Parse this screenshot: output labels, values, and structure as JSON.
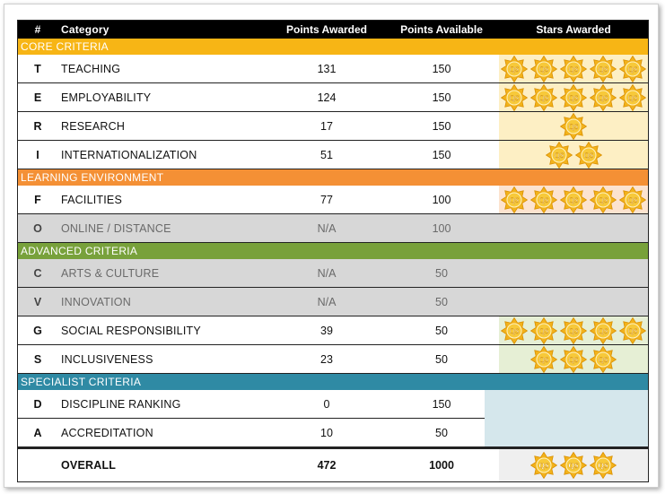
{
  "header": {
    "num": "#",
    "category": "Category",
    "points_awarded": "Points Awarded",
    "points_available": "Points Available",
    "stars_awarded": "Stars Awarded"
  },
  "star_badge_text": "QS",
  "colors": {
    "core": "#f7b515",
    "learning": "#f49035",
    "advanced": "#78a13b",
    "specialist": "#2f8aa4",
    "star": "#f2b21b"
  },
  "sections": [
    {
      "title": "CORE CRITERIA",
      "rows": [
        {
          "letter": "T",
          "category": "TEACHING",
          "awarded": "131",
          "available": "150",
          "stars": 5,
          "na": false
        },
        {
          "letter": "E",
          "category": "EMPLOYABILITY",
          "awarded": "124",
          "available": "150",
          "stars": 5,
          "na": false
        },
        {
          "letter": "R",
          "category": "RESEARCH",
          "awarded": "17",
          "available": "150",
          "stars": 1,
          "na": false
        },
        {
          "letter": "I",
          "category": "INTERNATIONALIZATION",
          "awarded": "51",
          "available": "150",
          "stars": 2,
          "na": false
        }
      ]
    },
    {
      "title": "LEARNING ENVIRONMENT",
      "rows": [
        {
          "letter": "F",
          "category": "FACILITIES",
          "awarded": "77",
          "available": "100",
          "stars": 5,
          "na": false
        },
        {
          "letter": "O",
          "category": "ONLINE / DISTANCE",
          "awarded": "N/A",
          "available": "100",
          "stars": 0,
          "na": true
        }
      ]
    },
    {
      "title": "ADVANCED CRITERIA",
      "rows": [
        {
          "letter": "C",
          "category": "ARTS & CULTURE",
          "awarded": "N/A",
          "available": "50",
          "stars": 0,
          "na": true
        },
        {
          "letter": "V",
          "category": "INNOVATION",
          "awarded": "N/A",
          "available": "50",
          "stars": 0,
          "na": true
        },
        {
          "letter": "G",
          "category": "SOCIAL RESPONSIBILITY",
          "awarded": "39",
          "available": "50",
          "stars": 5,
          "na": false
        },
        {
          "letter": "S",
          "category": "INCLUSIVENESS",
          "awarded": "23",
          "available": "50",
          "stars": 3,
          "na": false
        }
      ]
    },
    {
      "title": "SPECIALIST CRITERIA",
      "rows": [
        {
          "letter": "D",
          "category": "DISCIPLINE RANKING",
          "awarded": "0",
          "available": "150",
          "stars": 0,
          "na": false
        },
        {
          "letter": "A",
          "category": "ACCREDITATION",
          "awarded": "10",
          "available": "50",
          "stars": 0,
          "na": false
        }
      ]
    }
  ],
  "overall": {
    "label": "OVERALL",
    "awarded": "472",
    "available": "1000",
    "stars": 3
  }
}
